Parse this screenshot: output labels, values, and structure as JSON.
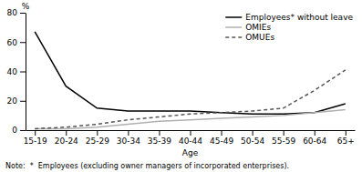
{
  "chart_data": {
    "type": "line",
    "xlabel": "Age",
    "ylabel": "%",
    "annotations": [
      "Note:  *  Employees (excluding owner managers of incorporated enterprises)."
    ],
    "categories": [
      "15-19",
      "20-24",
      "25-29",
      "30-34",
      "35-39",
      "40-44",
      "45-49",
      "50-54",
      "55-59",
      "60-64",
      "65+"
    ],
    "series": [
      {
        "name": "Employees* without leave",
        "color": "#000000",
        "line_style": "solid",
        "values": [
          67,
          30,
          15,
          13,
          13,
          13,
          12,
          11,
          11,
          12,
          18
        ]
      },
      {
        "name": "OMIEs",
        "color": "#b0b0b0",
        "line_style": "solid",
        "values": [
          1,
          1,
          2,
          4,
          6,
          7,
          8,
          9,
          10,
          12,
          14
        ]
      },
      {
        "name": "OMUEs",
        "color": "#555555",
        "line_style": "dashed",
        "values": [
          1,
          2,
          4,
          7,
          9,
          11,
          12,
          13,
          15,
          27,
          41
        ]
      }
    ],
    "ylim": [
      0,
      80
    ],
    "yticks": [
      0,
      20,
      40,
      60,
      80
    ],
    "grid": false,
    "legend": "upper right"
  }
}
